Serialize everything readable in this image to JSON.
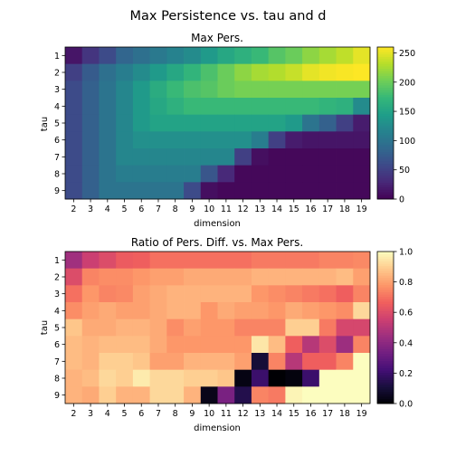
{
  "figure": {
    "suptitle": "Max Persistence vs. tau and d"
  },
  "chart_data": [
    {
      "type": "heatmap",
      "title": "Max Pers.",
      "xlabel": "dimension",
      "ylabel": "tau",
      "x": [
        2,
        3,
        4,
        5,
        6,
        7,
        8,
        9,
        10,
        11,
        12,
        13,
        14,
        15,
        16,
        17,
        18,
        19
      ],
      "y": [
        1,
        2,
        3,
        4,
        5,
        6,
        7,
        8,
        9
      ],
      "colormap": "viridis",
      "zlim": [
        0,
        260
      ],
      "colorbar_ticks": [
        0,
        50,
        100,
        150,
        200,
        250
      ],
      "values": [
        [
          15,
          40,
          60,
          85,
          95,
          105,
          115,
          125,
          140,
          155,
          165,
          175,
          190,
          200,
          215,
          225,
          235,
          250
        ],
        [
          50,
          75,
          95,
          110,
          125,
          140,
          155,
          170,
          185,
          200,
          215,
          225,
          230,
          238,
          250,
          255,
          258,
          260
        ],
        [
          60,
          80,
          100,
          120,
          140,
          160,
          175,
          185,
          190,
          200,
          205,
          205,
          205,
          205,
          205,
          205,
          205,
          205
        ],
        [
          60,
          80,
          100,
          120,
          140,
          155,
          165,
          175,
          175,
          175,
          175,
          175,
          175,
          175,
          175,
          170,
          165,
          125
        ],
        [
          60,
          80,
          100,
          120,
          140,
          150,
          150,
          150,
          150,
          150,
          150,
          150,
          150,
          140,
          100,
          80,
          50,
          20
        ],
        [
          60,
          80,
          100,
          120,
          130,
          130,
          130,
          130,
          130,
          130,
          130,
          110,
          50,
          20,
          15,
          15,
          15,
          15
        ],
        [
          60,
          80,
          100,
          120,
          120,
          120,
          120,
          120,
          120,
          120,
          50,
          10,
          5,
          5,
          5,
          5,
          5,
          5
        ],
        [
          60,
          80,
          100,
          110,
          110,
          110,
          110,
          110,
          70,
          30,
          5,
          5,
          5,
          5,
          5,
          5,
          5,
          5
        ],
        [
          60,
          80,
          100,
          100,
          100,
          100,
          100,
          60,
          10,
          5,
          5,
          5,
          5,
          5,
          5,
          5,
          5,
          5
        ]
      ]
    },
    {
      "type": "heatmap",
      "title": "Ratio of Pers. Diff. vs. Max Pers.",
      "xlabel": "dimension",
      "ylabel": "tau",
      "x": [
        2,
        3,
        4,
        5,
        6,
        7,
        8,
        9,
        10,
        11,
        12,
        13,
        14,
        15,
        16,
        17,
        18,
        19
      ],
      "y": [
        1,
        2,
        3,
        4,
        5,
        6,
        7,
        8,
        9
      ],
      "colormap": "magma",
      "zlim": [
        0,
        1
      ],
      "colorbar_ticks": [
        0.0,
        0.2,
        0.4,
        0.6,
        0.8,
        1.0
      ],
      "values": [
        [
          0.45,
          0.55,
          0.6,
          0.65,
          0.66,
          0.7,
          0.7,
          0.7,
          0.7,
          0.7,
          0.7,
          0.72,
          0.72,
          0.72,
          0.72,
          0.74,
          0.74,
          0.75
        ],
        [
          0.6,
          0.74,
          0.76,
          0.76,
          0.78,
          0.8,
          0.8,
          0.82,
          0.82,
          0.82,
          0.82,
          0.84,
          0.84,
          0.84,
          0.84,
          0.84,
          0.86,
          0.8
        ],
        [
          0.7,
          0.78,
          0.74,
          0.75,
          0.8,
          0.82,
          0.84,
          0.84,
          0.84,
          0.84,
          0.84,
          0.78,
          0.76,
          0.74,
          0.72,
          0.7,
          0.66,
          0.74
        ],
        [
          0.76,
          0.8,
          0.82,
          0.8,
          0.8,
          0.82,
          0.84,
          0.84,
          0.78,
          0.82,
          0.8,
          0.8,
          0.78,
          0.82,
          0.8,
          0.78,
          0.76,
          0.92
        ],
        [
          0.88,
          0.82,
          0.82,
          0.84,
          0.84,
          0.82,
          0.76,
          0.8,
          0.78,
          0.78,
          0.74,
          0.74,
          0.74,
          0.9,
          0.9,
          0.72,
          0.58,
          0.58
        ],
        [
          0.86,
          0.84,
          0.86,
          0.86,
          0.86,
          0.82,
          0.78,
          0.78,
          0.78,
          0.78,
          0.78,
          0.95,
          0.86,
          0.66,
          0.5,
          0.6,
          0.44,
          0.74
        ],
        [
          0.86,
          0.84,
          0.9,
          0.9,
          0.88,
          0.8,
          0.8,
          0.84,
          0.84,
          0.84,
          0.8,
          0.1,
          0.74,
          0.5,
          0.66,
          0.66,
          0.74,
          1.0
        ],
        [
          0.84,
          0.86,
          0.92,
          0.9,
          0.96,
          0.92,
          0.92,
          0.9,
          0.9,
          0.88,
          0.03,
          0.2,
          0.0,
          0.02,
          0.2,
          1.0,
          1.0,
          1.0
        ],
        [
          0.84,
          0.82,
          0.9,
          0.84,
          0.84,
          0.92,
          0.92,
          0.84,
          0.04,
          0.35,
          0.14,
          0.74,
          0.72,
          0.98,
          1.0,
          1.0,
          1.0,
          1.0
        ]
      ]
    }
  ]
}
